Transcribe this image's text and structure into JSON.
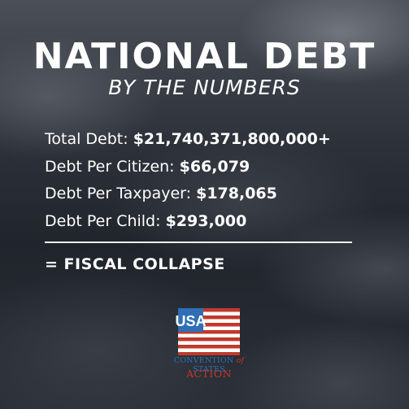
{
  "header": {
    "title": "NATIONAL DEBT",
    "subtitle": "BY THE NUMBERS"
  },
  "stats": [
    {
      "label": "Total Debt:",
      "value": "$21,740,371,800,000+"
    },
    {
      "label": "Debt Per Citizen:",
      "value": "$66,079"
    },
    {
      "label": "Debt Per Taxpayer:",
      "value": "$178,065"
    },
    {
      "label": "Debt Per Child:",
      "value": "$293,000"
    }
  ],
  "conclusion": "= FISCAL COLLAPSE",
  "logo": {
    "flag_text": "USA",
    "line1_a": "CONVENTION",
    "line1_of": "of",
    "line1_b": "STATES",
    "line2": "ACTION"
  },
  "colors": {
    "text": "#ffffff",
    "logo_blue": "#2f6fb5",
    "logo_red": "#c0392b"
  }
}
